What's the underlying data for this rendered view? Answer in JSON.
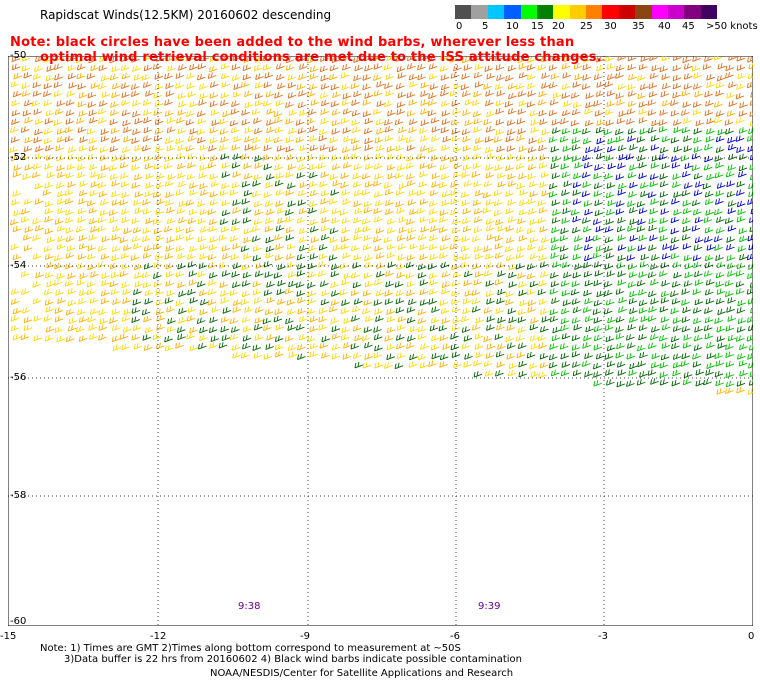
{
  "title": "Rapidscat Winds(12.5KM) 20160602 descending",
  "note_lines": [
    "Note: black circles have been added to the wind barbs, wherever less than",
    "optimal wind retrieval conditions are met due to the ISS attitude changes."
  ],
  "colorbar": {
    "colors": [
      "#505050",
      "#a0a0a0",
      "#00c8ff",
      "#0060ff",
      "#00ff00",
      "#008000",
      "#ffff00",
      "#ffcc00",
      "#ff8000",
      "#ff0000",
      "#cc0000",
      "#8b4513",
      "#ff00ff",
      "#cc00cc",
      "#800080",
      "#400060"
    ],
    "labels": [
      "0",
      "5",
      "10",
      "15",
      "20",
      "25",
      "30",
      "35",
      "40",
      "45",
      ">50 knots"
    ]
  },
  "lat_labels": [
    "-50",
    "-52",
    "-54",
    "-56",
    "-58",
    "-60"
  ],
  "lon_labels": [
    "-15",
    "-12",
    "-9",
    "-6",
    "-3",
    "0"
  ],
  "time_labels": [
    "9:38",
    "9:39"
  ],
  "footnotes": [
    "Note: 1) Times are GMT 2)Times along bottom correspond to measurement at ~50S",
    "3)Data buffer is 22 hrs from 20160602 4) Black wind barbs indicate possible contamination",
    "NOAA/NESDIS/Center for Satellite Applications and Research"
  ]
}
